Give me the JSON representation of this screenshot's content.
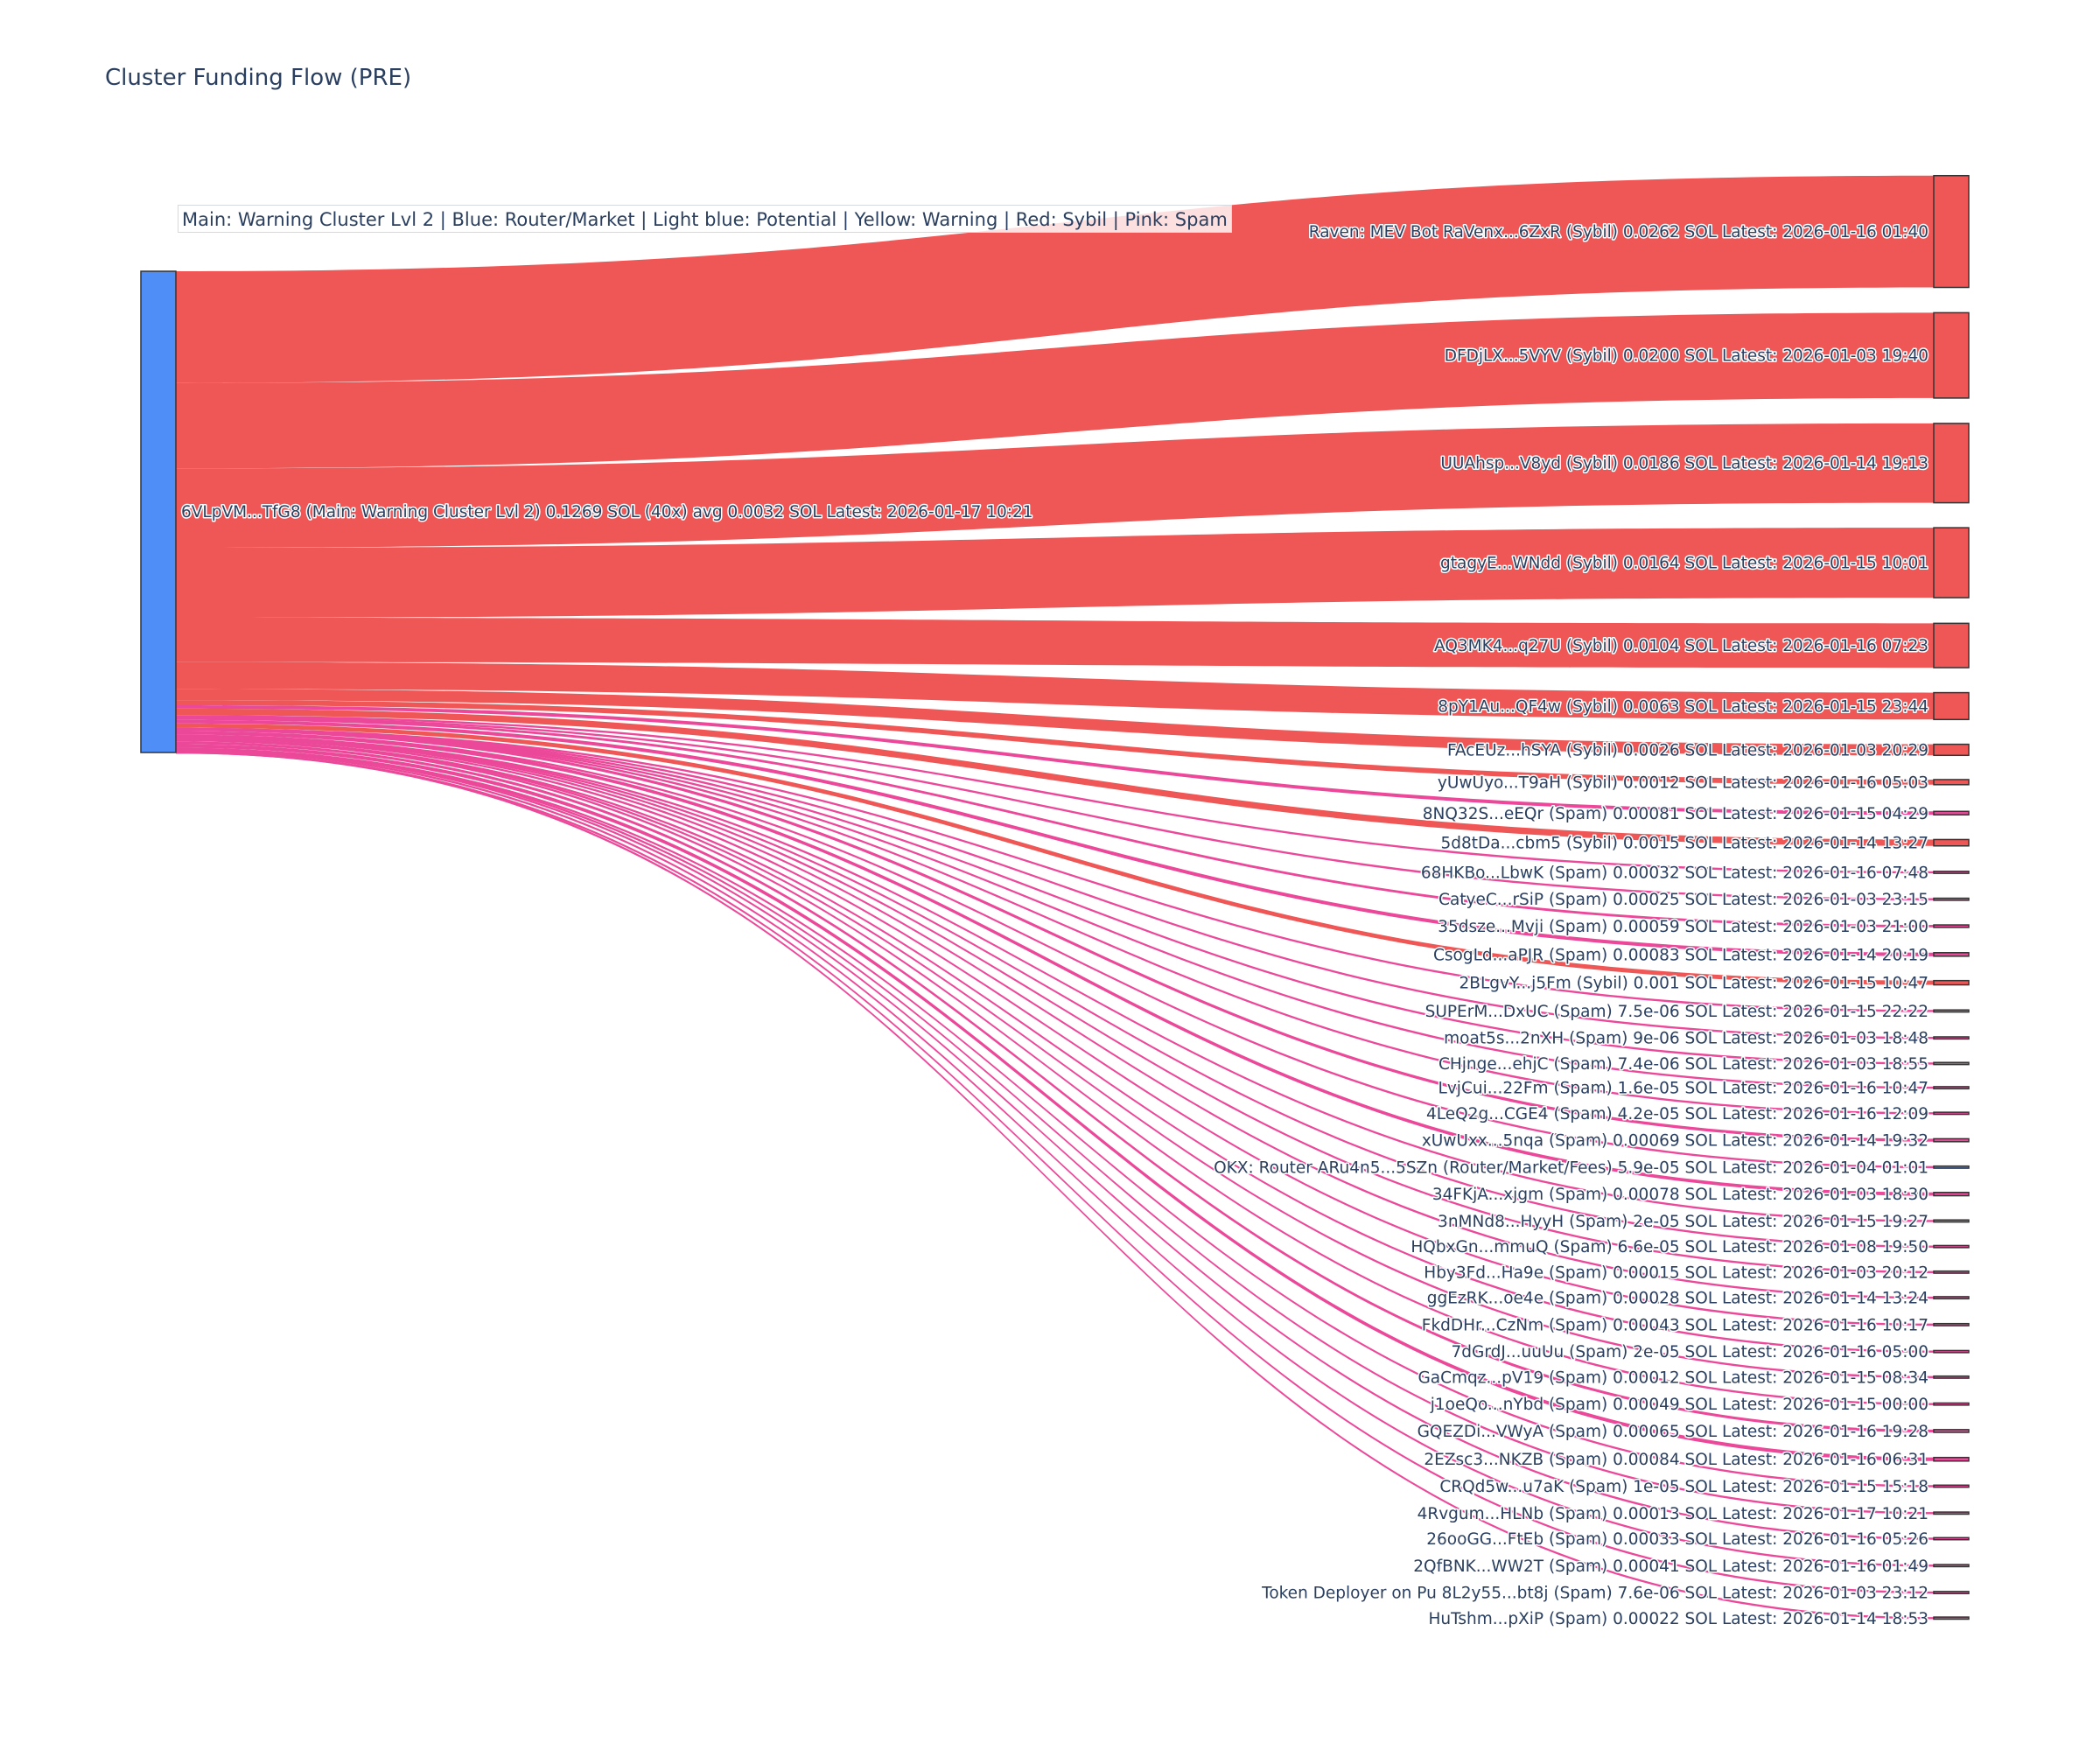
{
  "chart_data": {
    "type": "sankey",
    "title": "Cluster Funding Flow (PRE)",
    "legend_text": "Main: Warning Cluster Lvl 2  |  Blue: Router/Market | Light blue: Potential | Yellow: Warning | Red: Sybil | Pink: Spam",
    "colors": {
      "source": "#4f8ef7",
      "Sybil": "#ef5656",
      "Spam": "#ec4899",
      "Router": "#4f8ef7",
      "outline": "#333333"
    },
    "source": {
      "label": "6VLpVM...TfG8 (Main: Warning Cluster Lvl 2) 0.1269 SOL (40x) avg 0.0032 SOL Latest: 2026-01-17 10:21",
      "value": 0.1269
    },
    "targets": [
      {
        "label": "Raven: MEV Bot RaVenx...6ZxR (Sybil) 0.0262 SOL Latest: 2026-01-16 01:40",
        "value": 0.0262,
        "category": "Sybil"
      },
      {
        "label": "DFDjLX...5VYV (Sybil) 0.0200 SOL Latest: 2026-01-03 19:40",
        "value": 0.02,
        "category": "Sybil"
      },
      {
        "label": "UUAhsp...V8yd (Sybil) 0.0186 SOL Latest: 2026-01-14 19:13",
        "value": 0.0186,
        "category": "Sybil"
      },
      {
        "label": "gtagyE...WNdd (Sybil) 0.0164 SOL Latest: 2026-01-15 10:01",
        "value": 0.0164,
        "category": "Sybil"
      },
      {
        "label": "AQ3MK4...q27U (Sybil) 0.0104 SOL Latest: 2026-01-16 07:23",
        "value": 0.0104,
        "category": "Sybil"
      },
      {
        "label": "8pY1Au...QF4w (Sybil) 0.0063 SOL Latest: 2026-01-15 23:44",
        "value": 0.0063,
        "category": "Sybil"
      },
      {
        "label": "FAcEUz...hSYA (Sybil) 0.0026 SOL Latest: 2026-01-03 20:29",
        "value": 0.0026,
        "category": "Sybil"
      },
      {
        "label": "yUwUyo...T9aH (Sybil) 0.0012 SOL Latest: 2026-01-16 05:03",
        "value": 0.0012,
        "category": "Sybil"
      },
      {
        "label": "8NQ32S...eEQr (Spam) 0.00081 SOL Latest: 2026-01-15 04:29",
        "value": 0.00081,
        "category": "Spam"
      },
      {
        "label": "5d8tDa...cbm5 (Sybil) 0.0015 SOL Latest: 2026-01-14 13:27",
        "value": 0.0015,
        "category": "Sybil"
      },
      {
        "label": "68HKBo...LbwK (Spam) 0.00032 SOL Latest: 2026-01-16 07:48",
        "value": 0.00032,
        "category": "Spam"
      },
      {
        "label": "CatyeC...rSiP (Spam) 0.00025 SOL Latest: 2026-01-03 23:15",
        "value": 0.00025,
        "category": "Spam"
      },
      {
        "label": "35dsze...Mvji (Spam) 0.00059 SOL Latest: 2026-01-03 21:00",
        "value": 0.00059,
        "category": "Spam"
      },
      {
        "label": "CsogLd...aPJR (Spam) 0.00083 SOL Latest: 2026-01-14 20:19",
        "value": 0.00083,
        "category": "Spam"
      },
      {
        "label": "2BLgvY...j5Fm (Sybil) 0.001 SOL Latest: 2026-01-15 10:47",
        "value": 0.001,
        "category": "Sybil"
      },
      {
        "label": "SUPErM...DxUC (Spam) 7.5e-06 SOL Latest: 2026-01-15 22:22",
        "value": 7.5e-06,
        "category": "Spam"
      },
      {
        "label": "moat5s...2nXH (Spam) 9e-06 SOL Latest: 2026-01-03 18:48",
        "value": 9e-06,
        "category": "Spam"
      },
      {
        "label": "CHjnge...ehjC (Spam) 7.4e-06 SOL Latest: 2026-01-03 18:55",
        "value": 7.4e-06,
        "category": "Spam"
      },
      {
        "label": "LvjCui...22Fm (Spam) 1.6e-05 SOL Latest: 2026-01-16 10:47",
        "value": 1.6e-05,
        "category": "Spam"
      },
      {
        "label": "4LeQ2g...CGE4 (Spam) 4.2e-05 SOL Latest: 2026-01-16 12:09",
        "value": 4.2e-05,
        "category": "Spam"
      },
      {
        "label": "xUwUxx...5nqa (Spam) 0.00069 SOL Latest: 2026-01-14 19:32",
        "value": 0.00069,
        "category": "Spam"
      },
      {
        "label": "OKX: Router ARu4n5...5SZn (Router/Market/Fees) 5.9e-05 SOL Latest: 2026-01-04 01:01",
        "value": 5.9e-05,
        "category": "Router"
      },
      {
        "label": "34FKjA...xjgm (Spam) 0.00078 SOL Latest: 2026-01-03 18:30",
        "value": 0.00078,
        "category": "Spam"
      },
      {
        "label": "3nMNd8...HyyH (Spam) 2e-05 SOL Latest: 2026-01-15 19:27",
        "value": 2e-05,
        "category": "Spam"
      },
      {
        "label": "HQbxGn...mmuQ (Spam) 6.6e-05 SOL Latest: 2026-01-08 19:50",
        "value": 6.6e-05,
        "category": "Spam"
      },
      {
        "label": "Hby3Fd...Ha9e (Spam) 0.00015 SOL Latest: 2026-01-03 20:12",
        "value": 0.00015,
        "category": "Spam"
      },
      {
        "label": "ggEzRK...oe4e (Spam) 0.00028 SOL Latest: 2026-01-14 13:24",
        "value": 0.00028,
        "category": "Spam"
      },
      {
        "label": "FkdDHr...CzNm (Spam) 0.00043 SOL Latest: 2026-01-16 10:17",
        "value": 0.00043,
        "category": "Spam"
      },
      {
        "label": "7dGrdJ...uuUu (Spam) 2e-05 SOL Latest: 2026-01-16 05:00",
        "value": 2e-05,
        "category": "Spam"
      },
      {
        "label": "GaCmqz...pV19 (Spam) 0.00012 SOL Latest: 2026-01-15 08:34",
        "value": 0.00012,
        "category": "Spam"
      },
      {
        "label": "j1oeQo...nYbd (Spam) 0.00049 SOL Latest: 2026-01-15 00:00",
        "value": 0.00049,
        "category": "Spam"
      },
      {
        "label": "GQEZDi...VWyA (Spam) 0.00065 SOL Latest: 2026-01-16 19:28",
        "value": 0.00065,
        "category": "Spam"
      },
      {
        "label": "2EZsc3...NKZB (Spam) 0.00084 SOL Latest: 2026-01-16 06:31",
        "value": 0.00084,
        "category": "Spam"
      },
      {
        "label": "CRQd5w...u7aK (Spam) 1e-05 SOL Latest: 2026-01-15 15:18",
        "value": 1e-05,
        "category": "Spam"
      },
      {
        "label": "4Rvgum...HLNb (Spam) 0.00013 SOL Latest: 2026-01-17 10:21",
        "value": 0.00013,
        "category": "Spam"
      },
      {
        "label": "26ooGG...FtEb (Spam) 0.00033 SOL Latest: 2026-01-16 05:26",
        "value": 0.00033,
        "category": "Spam"
      },
      {
        "label": "2QfBNK...WW2T (Spam) 0.00041 SOL Latest: 2026-01-16 01:49",
        "value": 0.00041,
        "category": "Spam"
      },
      {
        "label": "Token Deployer on Pu 8L2y55...bt8j (Spam) 7.6e-06 SOL Latest: 2026-01-03 23:12",
        "value": 7.6e-06,
        "category": "Spam"
      },
      {
        "label": "HuTshm...pXiP (Spam) 0.00022 SOL Latest: 2026-01-14 18:53",
        "value": 0.00022,
        "category": "Spam"
      }
    ]
  }
}
